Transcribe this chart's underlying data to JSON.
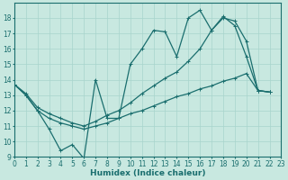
{
  "background_color": "#c8e8e0",
  "grid_color": "#a8d4cc",
  "line_color": "#1a6e6e",
  "xlabel": "Humidex (Indice chaleur)",
  "ylim": [
    9,
    19
  ],
  "xlim": [
    0,
    23
  ],
  "yticks": [
    9,
    10,
    11,
    12,
    13,
    14,
    15,
    16,
    17,
    18
  ],
  "xticks": [
    0,
    1,
    2,
    3,
    4,
    5,
    6,
    7,
    8,
    9,
    10,
    11,
    12,
    13,
    14,
    15,
    16,
    17,
    18,
    19,
    20,
    21,
    22,
    23
  ],
  "line1_x": [
    0,
    1,
    2,
    3,
    4,
    5,
    6,
    7,
    8,
    9,
    10,
    11,
    12,
    13,
    14,
    15,
    16,
    17,
    18,
    19,
    20,
    21,
    22
  ],
  "line1_y": [
    13.7,
    13.0,
    12.0,
    10.8,
    9.4,
    9.8,
    8.9,
    14.0,
    11.5,
    11.5,
    15.0,
    16.0,
    17.2,
    17.1,
    15.5,
    18.0,
    18.5,
    17.2,
    18.1,
    17.5,
    15.5,
    13.3,
    13.2
  ],
  "line2_x": [
    0,
    1,
    2,
    3,
    4,
    5,
    6,
    7,
    8,
    9,
    10,
    11,
    12,
    13,
    14,
    15,
    16,
    17,
    18,
    19,
    20,
    21,
    22
  ],
  "line2_y": [
    13.7,
    13.1,
    12.2,
    11.8,
    11.5,
    11.2,
    11.0,
    11.3,
    11.7,
    12.0,
    12.5,
    13.1,
    13.6,
    14.1,
    14.5,
    15.2,
    16.0,
    17.2,
    18.0,
    17.8,
    16.5,
    13.3,
    13.2
  ],
  "line3_x": [
    0,
    1,
    2,
    3,
    4,
    5,
    6,
    7,
    8,
    9,
    10,
    11,
    12,
    13,
    14,
    15,
    16,
    17,
    18,
    19,
    20,
    21,
    22
  ],
  "line3_y": [
    13.7,
    13.0,
    12.0,
    11.5,
    11.2,
    11.0,
    10.8,
    11.0,
    11.2,
    11.5,
    11.8,
    12.0,
    12.3,
    12.6,
    12.9,
    13.1,
    13.4,
    13.6,
    13.9,
    14.1,
    14.4,
    13.3,
    13.2
  ],
  "title_fontsize": 7,
  "axis_fontsize": 5.5,
  "xlabel_fontsize": 6.5
}
